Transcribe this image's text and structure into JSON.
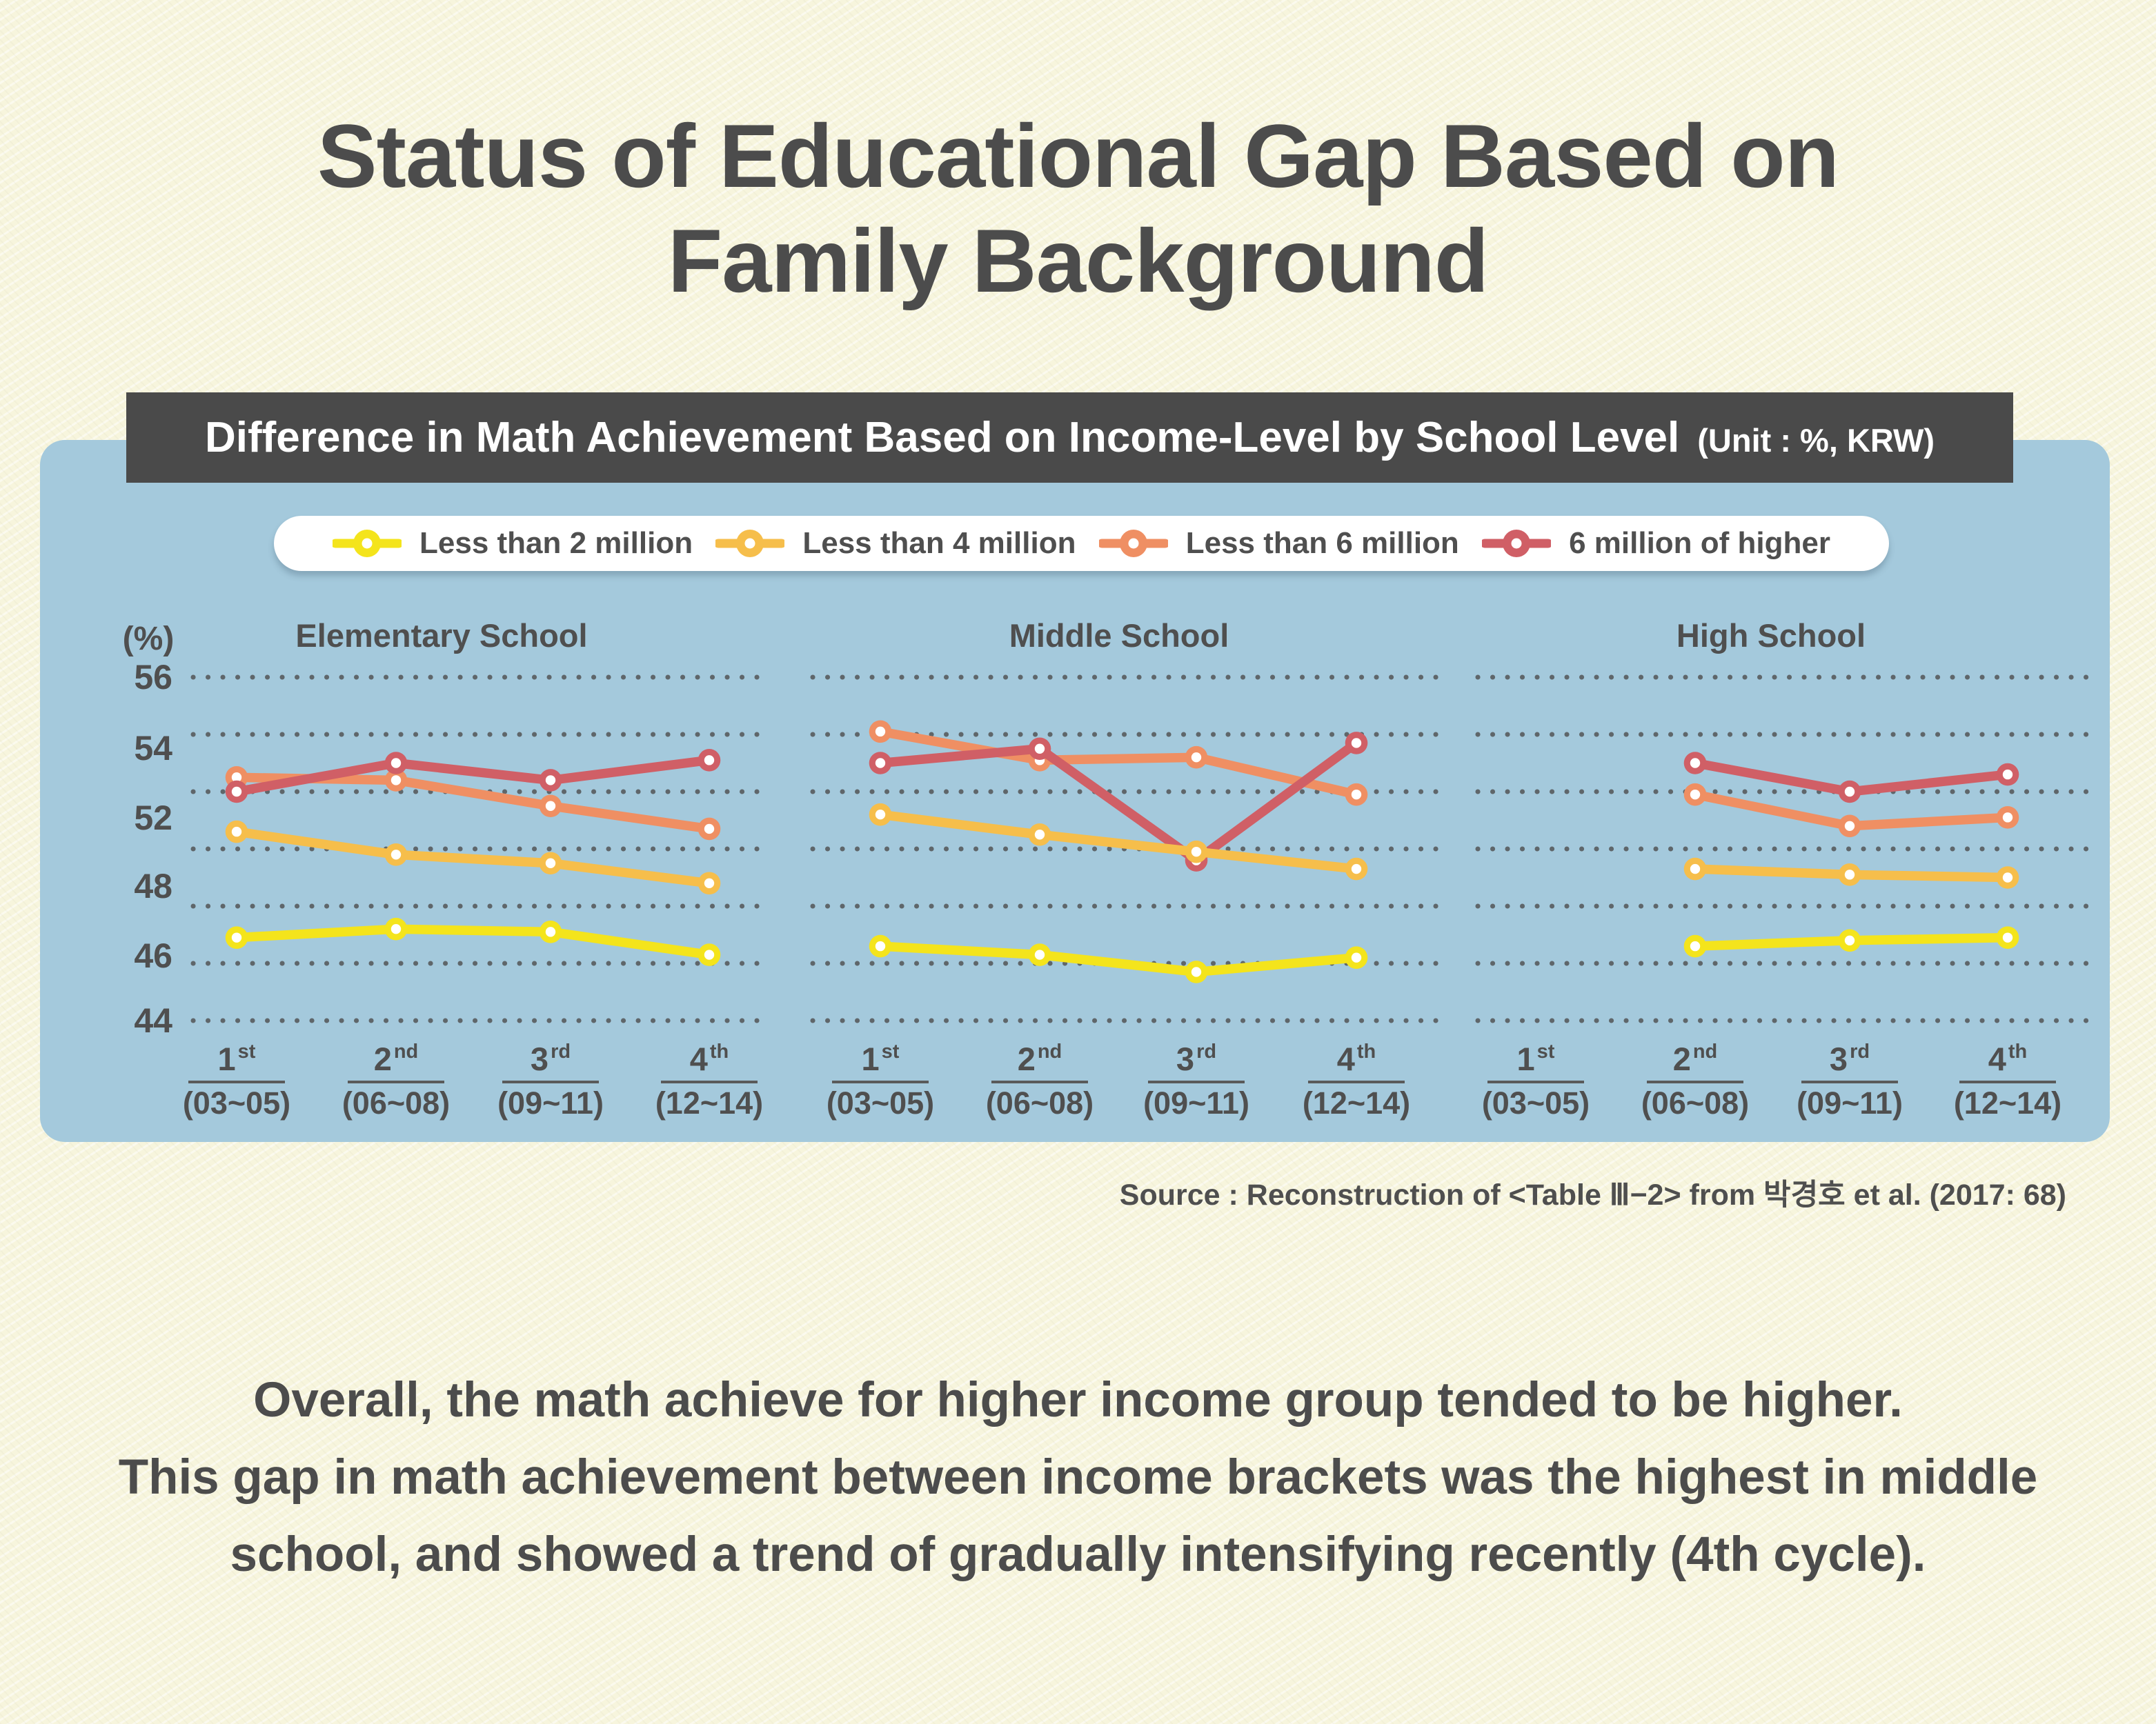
{
  "title": {
    "lines": [
      "Status of Educational Gap Based on",
      "Family Background"
    ]
  },
  "header_bar": {
    "text": "Difference in Math Achievement Based on Income-Level by School Level",
    "unit": "(Unit : %, KRW)"
  },
  "legend": {
    "position": "top",
    "items": [
      {
        "label": "Less than 2 million",
        "color": "#f4e41c"
      },
      {
        "label": "Less than 4 million",
        "color": "#f6be4b"
      },
      {
        "label": "Less than 6 million",
        "color": "#ef8f63"
      },
      {
        "label": "6 million of higher",
        "color": "#d05f66"
      }
    ]
  },
  "chart_data": {
    "type": "line",
    "unit_label": "(%)",
    "y_axis": {
      "tick_labels": [
        "56",
        "54",
        "52",
        "48",
        "46",
        "44"
      ],
      "gridline_values": [
        56,
        54,
        52,
        50,
        48,
        46,
        44
      ],
      "range": [
        44,
        56
      ],
      "grid": "dotted"
    },
    "categories": [
      {
        "ordinal": "1",
        "suffix": "st",
        "years": "(03~05)"
      },
      {
        "ordinal": "2",
        "suffix": "nd",
        "years": "(06~08)"
      },
      {
        "ordinal": "3",
        "suffix": "rd",
        "years": "(09~11)"
      },
      {
        "ordinal": "4",
        "suffix": "th",
        "years": "(12~14)"
      }
    ],
    "panels": [
      {
        "title": "Elementary School",
        "series": [
          {
            "name": "Less than 2 million",
            "values": [
              46.9,
              47.2,
              47.1,
              46.3
            ]
          },
          {
            "name": "Less than 4 million",
            "values": [
              50.6,
              49.8,
              49.5,
              48.8
            ]
          },
          {
            "name": "Less than 6 million",
            "values": [
              52.5,
              52.4,
              51.5,
              50.7
            ]
          },
          {
            "name": "6 million of higher",
            "values": [
              52.0,
              53.0,
              52.4,
              53.1
            ]
          }
        ]
      },
      {
        "title": "Middle School",
        "series": [
          {
            "name": "Less than 2 million",
            "values": [
              46.6,
              46.3,
              45.7,
              46.2
            ]
          },
          {
            "name": "Less than 4 million",
            "values": [
              51.2,
              50.5,
              49.9,
              49.3
            ]
          },
          {
            "name": "Less than 6 million",
            "values": [
              54.1,
              53.1,
              53.2,
              51.9
            ]
          },
          {
            "name": "6 million of higher",
            "values": [
              53.0,
              53.5,
              49.6,
              53.7
            ]
          }
        ]
      },
      {
        "title": "High School",
        "series": [
          {
            "name": "Less than 2 million",
            "values": [
              null,
              46.6,
              46.8,
              46.9
            ]
          },
          {
            "name": "Less than 4 million",
            "values": [
              null,
              49.3,
              49.1,
              49.0
            ]
          },
          {
            "name": "Less than 6 million",
            "values": [
              null,
              51.9,
              50.8,
              51.1
            ]
          },
          {
            "name": "6 million of higher",
            "values": [
              null,
              53.0,
              52.0,
              52.6
            ]
          }
        ]
      }
    ]
  },
  "source": "Source : Reconstruction of <Table Ⅲ−2> from 박경호 et al. (2017: 68)",
  "paragraph": {
    "lines": [
      "Overall, the math achieve for higher income group tended to be higher.",
      "This gap in math achievement between income brackets was the highest in middle",
      "school, and showed a trend of gradually intensifying recently (4th cycle)."
    ]
  },
  "colors": {
    "background": "#f7f5dd",
    "panel_blue": "#a4c9dc",
    "bar_dark": "#4a4a4a",
    "text_dark": "#4c4c4c",
    "text_chart": "#4f4f4f",
    "grid_dot": "#4e4e4e",
    "marker_center": "#ffffff"
  }
}
